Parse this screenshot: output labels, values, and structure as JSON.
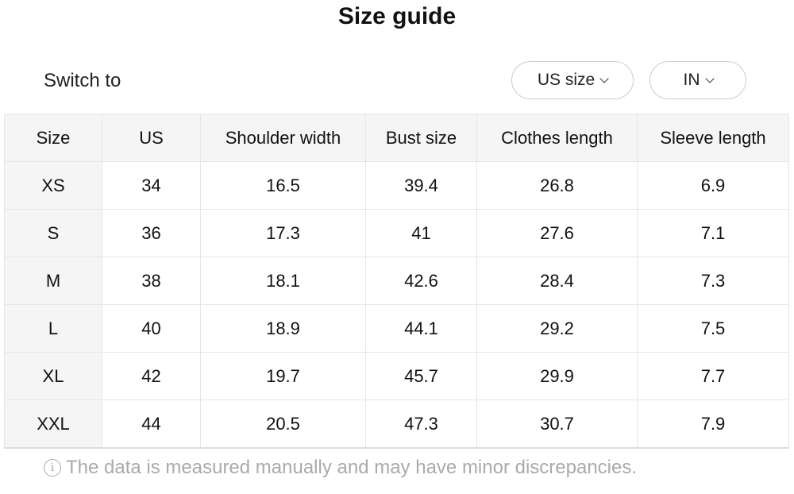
{
  "title": "Size guide",
  "switch_label": "Switch to",
  "size_select": {
    "value": "US size",
    "icon": "chevron-down-icon"
  },
  "unit_select": {
    "value": "IN",
    "icon": "chevron-down-icon"
  },
  "table": {
    "headers": [
      "Size",
      "US",
      "Shoulder width",
      "Bust size",
      "Clothes length",
      "Sleeve length"
    ],
    "rows": [
      [
        "XS",
        "34",
        "16.5",
        "39.4",
        "26.8",
        "6.9"
      ],
      [
        "S",
        "36",
        "17.3",
        "41",
        "27.6",
        "7.1"
      ],
      [
        "M",
        "38",
        "18.1",
        "42.6",
        "28.4",
        "7.3"
      ],
      [
        "L",
        "40",
        "18.9",
        "44.1",
        "29.2",
        "7.5"
      ],
      [
        "XL",
        "42",
        "19.7",
        "45.7",
        "29.9",
        "7.7"
      ],
      [
        "XXL",
        "44",
        "20.5",
        "47.3",
        "30.7",
        "7.9"
      ]
    ]
  },
  "note": {
    "icon": "info-icon",
    "text": "The data is measured manually and may have minor discrepancies."
  }
}
